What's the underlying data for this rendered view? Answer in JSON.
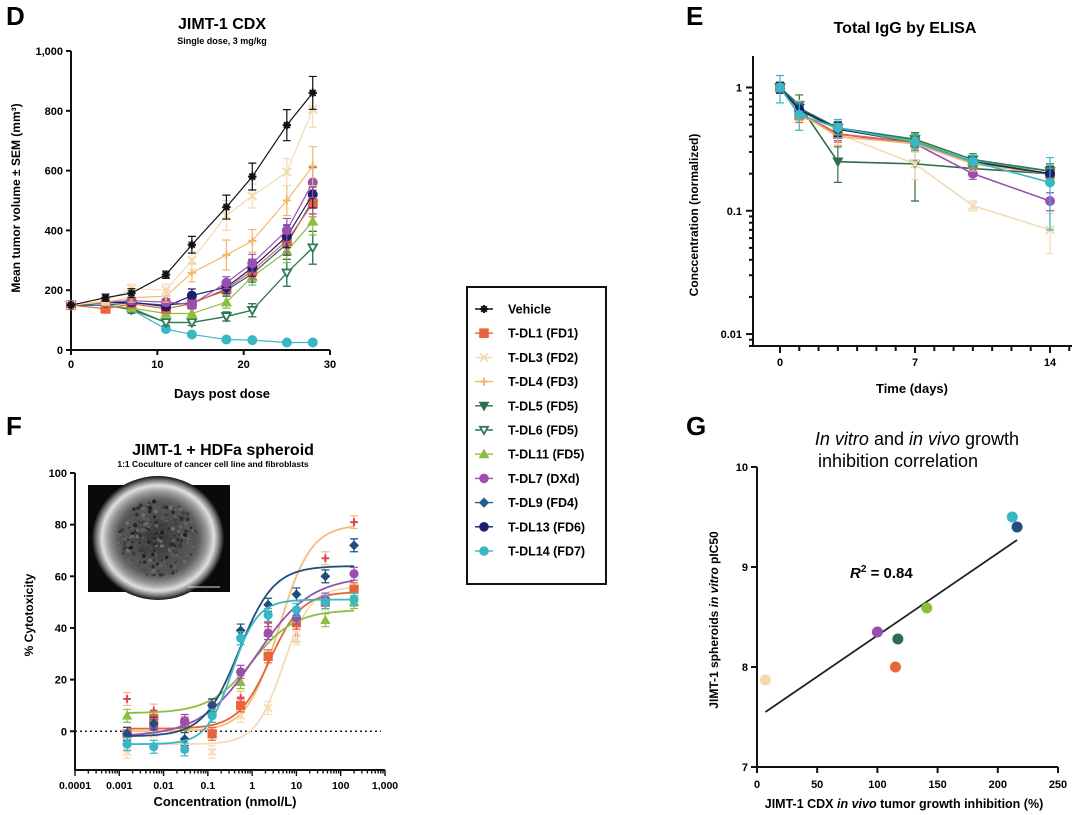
{
  "figure": {
    "panel_labels": {
      "D": "D",
      "E": "E",
      "F": "F",
      "G": "G"
    }
  },
  "legend": {
    "entries": [
      {
        "name": "Vehicle",
        "color": "#111111",
        "marker": "asterisk"
      },
      {
        "name": "T-DL1 (FD1)",
        "color": "#e8643a",
        "marker": "square"
      },
      {
        "name": "T-DL3 (FD2)",
        "color": "#f2dcb4",
        "marker": "x"
      },
      {
        "name": "T-DL4 (FD3)",
        "color": "#f2b86a",
        "marker": "plus"
      },
      {
        "name": "T-DL5 (FD5)",
        "color": "#2f6e4a",
        "marker": "triangle-down"
      },
      {
        "name": "T-DL6 (FD5)",
        "color": "#2e7a57",
        "marker": "triangle-down-open"
      },
      {
        "name": "T-DL11 (FD5)",
        "color": "#8cbf3f",
        "marker": "triangle-up"
      },
      {
        "name": "T-DL7 (DXd)",
        "color": "#9a4fb0",
        "marker": "circle"
      },
      {
        "name": "T-DL9 (FD4)",
        "color": "#1f5f8f",
        "marker": "diamond"
      },
      {
        "name": "T-DL13 (FD6)",
        "color": "#1a1f6e",
        "marker": "circle"
      },
      {
        "name": "T-DL14 (FD7)",
        "color": "#39b7c4",
        "marker": "circle"
      }
    ]
  },
  "chart_data": [
    {
      "id": "D",
      "type": "line",
      "title": "JIMT-1 CDX",
      "subtitle": "Single dose, 3 mg/kg",
      "xlabel": "Days post dose",
      "ylabel": "Mean tumor volume ± SEM (mm³)",
      "xlim": [
        0,
        30
      ],
      "ylim": [
        0,
        1000
      ],
      "xticks": [
        0,
        10,
        20,
        30
      ],
      "yticks": [
        0,
        200,
        400,
        600,
        800,
        1000
      ],
      "ytick_labels": [
        "0",
        "200",
        "400",
        "600",
        "800",
        "1,000"
      ],
      "x": [
        0,
        4,
        7,
        11,
        14,
        18,
        21,
        25,
        28
      ],
      "series": [
        {
          "name": "Vehicle",
          "values": [
            150,
            175,
            190,
            252,
            352,
            478,
            580,
            752,
            860
          ],
          "err": [
            10,
            12,
            15,
            12,
            28,
            40,
            45,
            52,
            55
          ]
        },
        {
          "name": "T-DL3 (FD2)",
          "values": [
            150,
            165,
            205,
            200,
            300,
            450,
            515,
            595,
            805
          ],
          "err": [
            10,
            12,
            15,
            20,
            30,
            50,
            40,
            45,
            60
          ]
        },
        {
          "name": "T-DL4 (FD3)",
          "values": [
            150,
            160,
            175,
            180,
            258,
            318,
            365,
            500,
            615
          ],
          "err": [
            10,
            12,
            15,
            20,
            30,
            50,
            38,
            50,
            65
          ]
        },
        {
          "name": "T-DL7 (DXd)",
          "values": [
            150,
            160,
            165,
            160,
            152,
            225,
            290,
            400,
            560
          ],
          "err": [
            10,
            10,
            12,
            12,
            15,
            20,
            30,
            40,
            50
          ]
        },
        {
          "name": "T-DL13 (FD6)",
          "values": [
            150,
            158,
            160,
            145,
            182,
            210,
            275,
            380,
            520
          ],
          "err": [
            10,
            10,
            12,
            12,
            22,
            20,
            28,
            38,
            45
          ]
        },
        {
          "name": "T-DL1 (FD1)",
          "values": [
            150,
            138,
            155,
            138,
            155,
            205,
            265,
            365,
            490
          ],
          "err": [
            10,
            10,
            12,
            12,
            15,
            20,
            28,
            38,
            45
          ]
        },
        {
          "name": "T-DL9 (FD4)",
          "values": [
            150,
            150,
            158,
            150,
            158,
            200,
            255,
            355,
            500
          ],
          "err": [
            10,
            10,
            12,
            12,
            15,
            20,
            28,
            38,
            45
          ]
        },
        {
          "name": "T-DL11 (FD5)",
          "values": [
            150,
            150,
            140,
            122,
            122,
            160,
            245,
            330,
            430
          ],
          "err": [
            10,
            10,
            12,
            12,
            15,
            20,
            28,
            38,
            45
          ]
        },
        {
          "name": "T-DL6 (FD5)",
          "values": [
            150,
            150,
            140,
            92,
            92,
            112,
            133,
            258,
            342
          ],
          "err": [
            10,
            10,
            12,
            10,
            10,
            15,
            22,
            45,
            55
          ]
        },
        {
          "name": "T-DL5 (FD5)",
          "values": [
            150,
            150,
            135,
            92,
            92,
            112,
            133,
            258,
            342
          ],
          "err": [
            10,
            10,
            12,
            10,
            10,
            15,
            22,
            45,
            55
          ]
        },
        {
          "name": "T-DL14 (FD7)",
          "values": [
            150,
            150,
            135,
            70,
            52,
            35,
            33,
            25,
            25
          ],
          "err": [
            8,
            8,
            8,
            6,
            5,
            4,
            4,
            4,
            4
          ]
        }
      ]
    },
    {
      "id": "E",
      "type": "line",
      "title": "Total IgG by ELISA",
      "xlabel": "Time (days)",
      "ylabel": "Conccentration (normalized)",
      "xlim": [
        0,
        15
      ],
      "ylim": [
        0.008,
        1.8
      ],
      "yscale": "log",
      "xticks": [
        0,
        7,
        14
      ],
      "yticks": [
        0.01,
        0.1,
        1
      ],
      "ytick_labels": [
        "0.01",
        "0.1",
        "1"
      ],
      "x": [
        0,
        1,
        3,
        7,
        10,
        14
      ],
      "series": [
        {
          "name": "T-DL5 (FD5)",
          "values": [
            1.0,
            0.72,
            0.25,
            0.24,
            0.22,
            0.2
          ],
          "err": [
            0.1,
            0.15,
            0.08,
            0.12,
            0.03,
            0.03
          ]
        },
        {
          "name": "T-DL3 (FD2)",
          "values": [
            1.0,
            0.68,
            0.42,
            0.24,
            0.11,
            0.07
          ],
          "err": [
            0.1,
            0.1,
            0.06,
            0.06,
            0.01,
            0.025
          ]
        },
        {
          "name": "T-DL7 (DXd)",
          "values": [
            1.0,
            0.62,
            0.42,
            0.35,
            0.2,
            0.12
          ],
          "err": [
            0.1,
            0.08,
            0.05,
            0.05,
            0.02,
            0.02
          ]
        },
        {
          "name": "T-DL1 (FD1)",
          "values": [
            1.0,
            0.6,
            0.42,
            0.36,
            0.24,
            0.2
          ],
          "err": [
            0.1,
            0.08,
            0.06,
            0.05,
            0.03,
            0.03
          ]
        },
        {
          "name": "T-DL4 (FD3)",
          "values": [
            1.0,
            0.62,
            0.4,
            0.35,
            0.24,
            0.2
          ],
          "err": [
            0.1,
            0.08,
            0.06,
            0.05,
            0.03,
            0.03
          ]
        },
        {
          "name": "T-DL11 (FD5)",
          "values": [
            1.0,
            0.65,
            0.46,
            0.37,
            0.25,
            0.21
          ],
          "err": [
            0.1,
            0.08,
            0.06,
            0.05,
            0.03,
            0.03
          ]
        },
        {
          "name": "T-DL6 (FD5)",
          "values": [
            1.0,
            0.68,
            0.47,
            0.38,
            0.26,
            0.21
          ],
          "err": [
            0.1,
            0.08,
            0.06,
            0.05,
            0.03,
            0.03
          ]
        },
        {
          "name": "T-DL13 (FD6)",
          "values": [
            1.0,
            0.66,
            0.46,
            0.36,
            0.25,
            0.2
          ],
          "err": [
            0.1,
            0.08,
            0.06,
            0.05,
            0.03,
            0.03
          ]
        },
        {
          "name": "T-DL14 (FD7)",
          "values": [
            1.0,
            0.6,
            0.47,
            0.36,
            0.25,
            0.17
          ],
          "err": [
            0.25,
            0.15,
            0.08,
            0.05,
            0.03,
            0.1
          ]
        }
      ]
    },
    {
      "id": "F",
      "type": "scatter",
      "title": "JIMT-1 + HDFa spheroid",
      "subtitle": "1:1 Coculture of cancer cell line and fibroblasts",
      "xlabel": "Concentration (nmol/L)",
      "ylabel": "% Cytotoxicity",
      "xscale": "log",
      "xlim": [
        0.0001,
        1000
      ],
      "ylim": [
        -15,
        100
      ],
      "xticks": [
        0.0001,
        0.001,
        0.01,
        0.1,
        1,
        10,
        100,
        1000
      ],
      "xtick_labels": [
        "0.0001",
        "0.001",
        "0.01",
        "0.1",
        "1",
        "10",
        "100",
        "1,000"
      ],
      "yticks": [
        0,
        20,
        40,
        60,
        80,
        100
      ],
      "reference_line": 0,
      "x": [
        0.0015,
        0.006,
        0.03,
        0.125,
        0.55,
        2.3,
        10,
        45,
        200
      ],
      "series": [
        {
          "name": "T-DL4 (FD3)",
          "values": [
            12.5,
            8,
            3,
            10,
            13,
            42,
            37,
            67,
            81
          ],
          "fit": {
            "bottom": 0,
            "top": 80,
            "ec50": 4,
            "hill": 1.2
          }
        },
        {
          "name": "T-DL3 (FD2)",
          "values": [
            -8,
            -1,
            -7,
            -8,
            6,
            9,
            36,
            48,
            53
          ],
          "fit": {
            "bottom": -5,
            "top": 56,
            "ec50": 5,
            "hill": 1.4
          }
        },
        {
          "name": "T-DL1 (FD1)",
          "values": [
            -1,
            5,
            3,
            -1,
            10,
            29,
            42,
            50,
            55
          ],
          "fit": {
            "bottom": 1,
            "top": 54,
            "ec50": 2.5,
            "hill": 1.2
          }
        },
        {
          "name": "T-DL11 (FD5)",
          "values": [
            6,
            2,
            2,
            8,
            19,
            38,
            45,
            43,
            50
          ],
          "fit": {
            "bottom": 7,
            "top": 47,
            "ec50": 1.0,
            "hill": 0.9
          }
        },
        {
          "name": "T-DL7 (DXd)",
          "values": [
            -1,
            2,
            4,
            10,
            23,
            38,
            44,
            51,
            61
          ],
          "fit": {
            "bottom": -2,
            "top": 60,
            "ec50": 1.2,
            "hill": 0.7
          }
        },
        {
          "name": "T-DL9 (FD4)",
          "values": [
            -1,
            3,
            -3,
            10,
            39,
            49,
            53,
            60,
            72
          ],
          "fit": {
            "bottom": -2,
            "top": 64,
            "ec50": 0.5,
            "hill": 1.1
          }
        },
        {
          "name": "T-DL14 (FD7)",
          "values": [
            -5,
            -6,
            -7,
            6,
            36,
            45,
            47,
            50,
            51
          ],
          "fit": {
            "bottom": -5,
            "top": 51,
            "ec50": 0.35,
            "hill": 1.5
          }
        }
      ],
      "inset_image": "spheroid-micrograph"
    },
    {
      "id": "G",
      "type": "scatter",
      "title": "In vitro and in vivo growth inhibition correlation",
      "title_parts": [
        {
          "text": "In vitro",
          "italic": true
        },
        {
          "text": " and ",
          "italic": false
        },
        {
          "text": "in vivo",
          "italic": true
        },
        {
          "text": " growth",
          "italic": false
        }
      ],
      "title_line2": "inhibition correlation",
      "xlabel": "JIMT-1 CDX in vivo tumor growth inhibition (%)",
      "xlabel_parts": [
        {
          "text": "JIMT-1 CDX ",
          "italic": false
        },
        {
          "text": "in vivo",
          "italic": true
        },
        {
          "text": " tumor growth inhibition (%)",
          "italic": false
        }
      ],
      "ylabel": "JIMT-1 spheroids in vitro pIC50",
      "ylabel_parts": [
        {
          "text": "JIMT-1 spheroids ",
          "italic": false
        },
        {
          "text": "in vitro",
          "italic": true
        },
        {
          "text": " pIC50",
          "italic": false
        }
      ],
      "xlim": [
        0,
        250
      ],
      "ylim": [
        7,
        10
      ],
      "xticks": [
        0,
        50,
        100,
        150,
        200,
        250
      ],
      "yticks": [
        7,
        8,
        9,
        10
      ],
      "annotation": {
        "label": "R",
        "sup": "2",
        "value": " = 0.84"
      },
      "points": [
        {
          "name": "T-DL3 (FD2)",
          "x": 7,
          "y": 7.87,
          "color": "#f5d9a8"
        },
        {
          "name": "T-DL7 (DXd)",
          "x": 100,
          "y": 8.35,
          "color": "#9a4fb0"
        },
        {
          "name": "T-DL1 (FD1)",
          "x": 115,
          "y": 8.0,
          "color": "#e8643a"
        },
        {
          "name": "T-DL5 (FD5)",
          "x": 117,
          "y": 8.28,
          "color": "#2f6e4a"
        },
        {
          "name": "T-DL11 (FD5)",
          "x": 141,
          "y": 8.59,
          "color": "#8cbf3f"
        },
        {
          "name": "T-DL14 (FD7)",
          "x": 212,
          "y": 9.5,
          "color": "#39b7c4"
        },
        {
          "name": "T-DL9 (FD4)",
          "x": 216,
          "y": 9.4,
          "color": "#1f4f7a"
        }
      ],
      "regression": {
        "x": [
          7,
          216
        ],
        "y": [
          7.55,
          9.27
        ]
      }
    }
  ]
}
